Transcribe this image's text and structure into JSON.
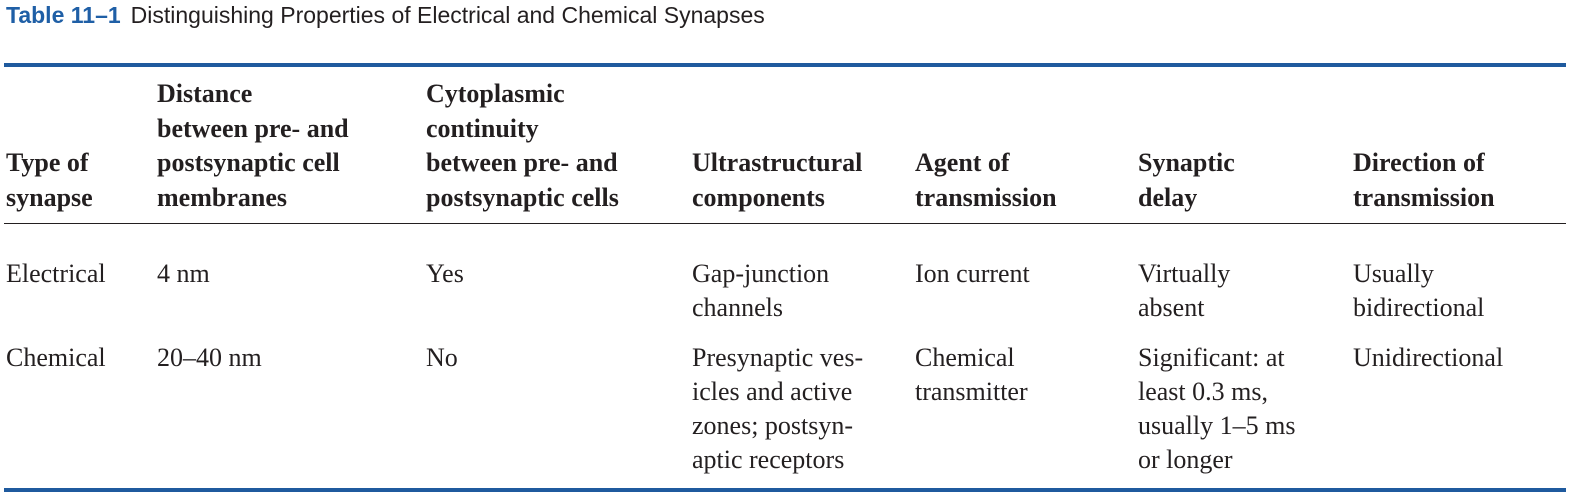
{
  "caption": {
    "number": "Table 11–1",
    "title": "Distinguishing Properties of Electrical and Chemical Synapses"
  },
  "headers": [
    "Type of\nsynapse",
    "Distance\nbetween pre- and\npostsynaptic cell\nmembranes",
    "Cytoplasmic\ncontinuity\nbetween pre- and\npostsynaptic cells",
    "Ultrastructural\ncomponents",
    "Agent of\ntransmission",
    "Synaptic\ndelay",
    "Direction of\ntransmission"
  ],
  "rows": [
    [
      "Electrical",
      "4 nm",
      "Yes",
      "Gap-junction\nchannels",
      "Ion current",
      "Virtually\nabsent",
      "Usually\nbidirectional"
    ],
    [
      "Chemical",
      "20–40 nm",
      "No",
      "Presynaptic ves-\nicles and active\nzones; postsyn-\naptic receptors",
      "Chemical\ntransmitter",
      "Significant: at\nleast 0.3 ms,\nusually 1–5 ms\nor longer",
      "Unidirectional"
    ]
  ]
}
